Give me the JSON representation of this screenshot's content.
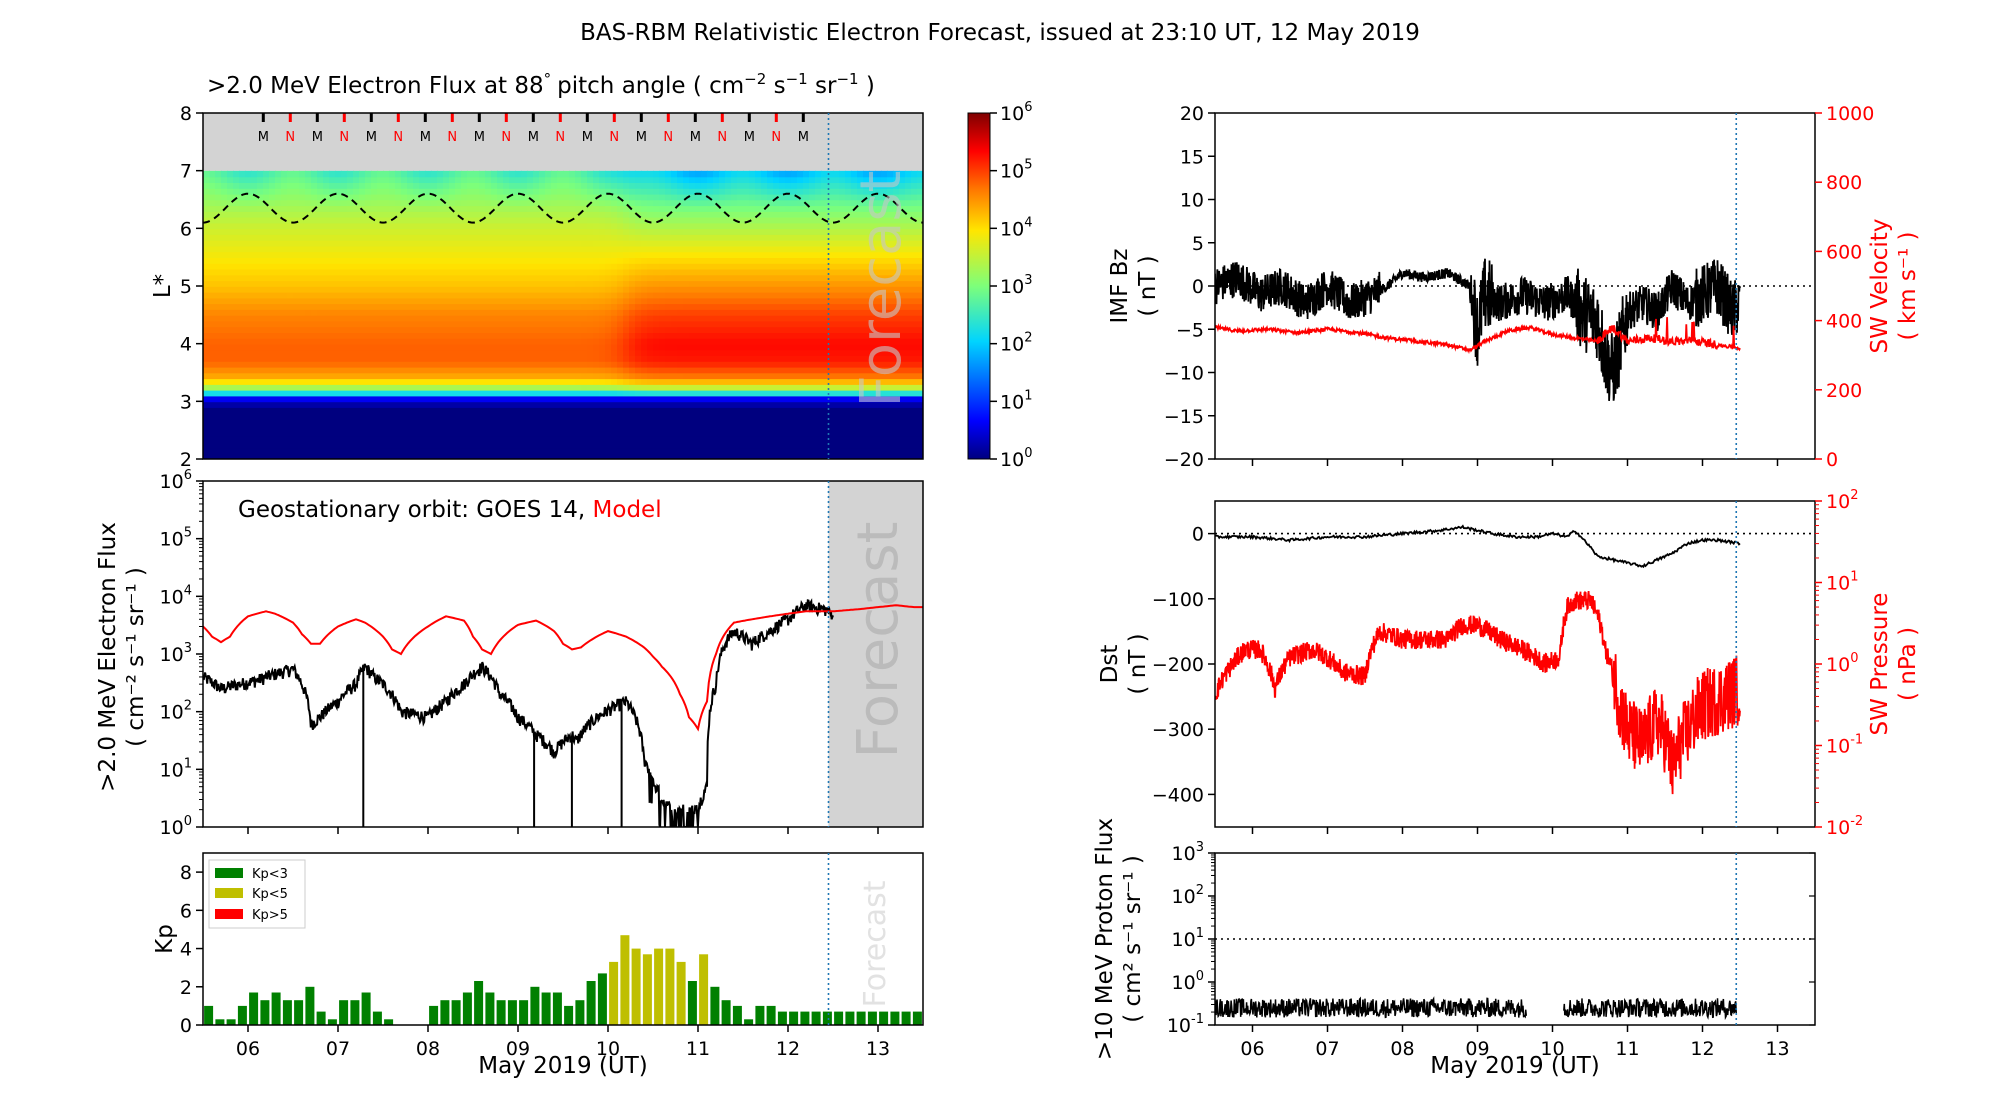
{
  "figure": {
    "title": "BAS-RBM Relativistic Electron Forecast, issued at 23:10 UT, 12 May 2019",
    "xlabel": "May 2019 (UT)",
    "day_ticks": [
      "06",
      "07",
      "08",
      "09",
      "10",
      "11",
      "12",
      "13"
    ],
    "forecast_text": "Forecast",
    "colors": {
      "black": "#000000",
      "red": "#ff0000",
      "forecast_line": "#1f77b4",
      "forecast_shade": "#d3d3d3",
      "kp_low": "#008000",
      "kp_mid": "#bfbf00",
      "kp_high": "#ff0000"
    }
  },
  "chart_data": [
    {
      "id": "lstar-flux",
      "type": "heatmap",
      "title_main": ">2.0 MeV Electron Flux at 88",
      "title_deg": "°",
      "title_units": "pitch angle ( cm",
      "title_sup1": "−2",
      "title_mid1": " s",
      "title_sup2": "−1",
      "title_mid2": " sr",
      "title_sup3": "−1",
      "title_end": " )",
      "ylabel": "L*",
      "xlim": [
        5.5,
        13.5
      ],
      "ylim": [
        2,
        8
      ],
      "yticks": [
        "2",
        "3",
        "4",
        "5",
        "6",
        "7",
        "8"
      ],
      "colorbar": {
        "label_base": "10",
        "exponents": [
          "0",
          "1",
          "2",
          "3",
          "4",
          "5",
          "6"
        ],
        "log10_range": [
          0,
          6
        ]
      },
      "orbit_markers": [
        {
          "label": "M",
          "t": 6.17
        },
        {
          "label": "N",
          "t": 6.47
        },
        {
          "label": "M",
          "t": 6.77
        },
        {
          "label": "N",
          "t": 7.07
        },
        {
          "label": "M",
          "t": 7.37
        },
        {
          "label": "N",
          "t": 7.67
        },
        {
          "label": "M",
          "t": 7.97
        },
        {
          "label": "N",
          "t": 8.27
        },
        {
          "label": "M",
          "t": 8.57
        },
        {
          "label": "N",
          "t": 8.87
        },
        {
          "label": "M",
          "t": 9.17
        },
        {
          "label": "N",
          "t": 9.47
        },
        {
          "label": "M",
          "t": 9.77
        },
        {
          "label": "N",
          "t": 10.07
        },
        {
          "label": "M",
          "t": 10.37
        },
        {
          "label": "N",
          "t": 10.67
        },
        {
          "label": "M",
          "t": 10.97
        },
        {
          "label": "N",
          "t": 11.27
        },
        {
          "label": "M",
          "t": 11.57
        },
        {
          "label": "N",
          "t": 11.87
        },
        {
          "label": "M",
          "t": 12.17
        },
        {
          "label": "N",
          "t": 12.47
        }
      ],
      "flux_profile": {
        "L": [
          2.0,
          2.9,
          3.05,
          3.2,
          3.4,
          3.7,
          4.0,
          4.5,
          5.0,
          5.5,
          6.0,
          6.5,
          7.0
        ],
        "before_storm_log10": [
          0.0,
          0.0,
          0.6,
          3.0,
          4.3,
          4.8,
          4.8,
          4.6,
          4.2,
          3.9,
          3.6,
          3.2,
          2.8
        ],
        "after_storm_log10": [
          0.0,
          0.0,
          0.6,
          3.2,
          4.6,
          5.2,
          5.3,
          5.0,
          4.5,
          4.0,
          3.4,
          2.8,
          2.1
        ]
      },
      "storm_time": 10.2,
      "magnetopause_L": {
        "mean": 6.35,
        "amplitude": 0.25,
        "period_days": 1.0
      },
      "forecast_start": 12.45
    },
    {
      "id": "geo-flux",
      "type": "line",
      "annotation_prefix": "Geostationary orbit:   GOES 14,  ",
      "annotation_model": "Model",
      "ylabel_line1": ">2.0 MeV Electron Flux",
      "ylabel_line2": "( cm⁻² s⁻¹ sr⁻¹ )",
      "yscale": "log",
      "ylim": [
        1,
        1000000
      ],
      "ytick_exponents": [
        "0",
        "1",
        "2",
        "3",
        "4",
        "5",
        "6"
      ],
      "xlim": [
        5.5,
        13.5
      ],
      "series": [
        {
          "name": "GOES 14",
          "x": [
            5.5,
            5.7,
            5.9,
            6.1,
            6.3,
            6.5,
            6.6,
            6.7,
            6.8,
            7.0,
            7.2,
            7.3,
            7.4,
            7.6,
            7.7,
            8.0,
            8.2,
            8.4,
            8.6,
            8.7,
            8.8,
            9.0,
            9.2,
            9.4,
            9.6,
            9.65,
            10.2,
            10.3,
            10.4,
            10.5,
            10.6,
            10.7,
            11.0,
            11.1,
            11.2,
            11.3,
            11.4,
            11.6,
            11.8,
            12.0,
            12.2,
            12.4,
            12.5
          ],
          "y": [
            400,
            250,
            300,
            350,
            450,
            550,
            300,
            60,
            80,
            150,
            300,
            600,
            400,
            200,
            100,
            80,
            150,
            300,
            600,
            400,
            200,
            80,
            40,
            20,
            40,
            30,
            150,
            80,
            15,
            6,
            3,
            2,
            2,
            5,
            300,
            1500,
            2500,
            1500,
            2500,
            4000,
            7000,
            6000,
            5000
          ]
        },
        {
          "name": "Model",
          "x": [
            5.5,
            5.6,
            5.7,
            5.8,
            6.0,
            6.2,
            6.3,
            6.5,
            6.6,
            6.7,
            6.8,
            7.0,
            7.2,
            7.3,
            7.5,
            7.6,
            7.7,
            8.0,
            8.2,
            8.4,
            8.5,
            8.6,
            8.7,
            9.0,
            9.2,
            9.4,
            9.5,
            9.6,
            9.7,
            10.0,
            10.2,
            10.4,
            10.5,
            10.6,
            10.7,
            10.8,
            10.9,
            11.0,
            11.1,
            11.2,
            11.4,
            11.6,
            11.8,
            12.0,
            12.2,
            12.5,
            12.8,
            13.0,
            13.2,
            13.4,
            13.5
          ],
          "y": [
            3000,
            2000,
            1600,
            2000,
            4500,
            5500,
            5000,
            3500,
            2200,
            1500,
            1500,
            3000,
            4000,
            3500,
            2000,
            1200,
            1000,
            3000,
            4500,
            3800,
            2000,
            1200,
            1000,
            3200,
            3800,
            2500,
            1500,
            1200,
            1300,
            2500,
            2000,
            1300,
            900,
            600,
            400,
            200,
            80,
            50,
            150,
            1000,
            3500,
            4000,
            4500,
            5000,
            5500,
            5500,
            6000,
            6500,
            7000,
            6500,
            6500
          ]
        }
      ],
      "forecast_start": 12.45
    },
    {
      "id": "kp",
      "type": "bar",
      "ylabel": "Kp",
      "ylim": [
        0,
        9
      ],
      "yticks": [
        "0",
        "2",
        "4",
        "6",
        "8"
      ],
      "xlim": [
        5.5,
        13.5
      ],
      "bar_width_days": 0.1,
      "legend": [
        "Kp<3",
        "Kp<5",
        "Kp>5"
      ],
      "legend_placement": "top-left",
      "values": [
        1.0,
        0.3,
        0.3,
        1.0,
        1.7,
        1.3,
        1.7,
        1.3,
        1.3,
        2.0,
        0.7,
        0.3,
        1.3,
        1.3,
        1.7,
        0.7,
        0.3,
        0.0,
        0.0,
        0.0,
        1.0,
        1.3,
        1.3,
        1.7,
        2.3,
        1.7,
        1.3,
        1.3,
        1.3,
        2.0,
        1.7,
        1.7,
        1.0,
        1.3,
        2.3,
        2.7,
        3.3,
        4.7,
        4.0,
        3.7,
        4.0,
        4.0,
        3.3,
        2.3,
        3.7,
        2.0,
        1.3,
        1.0,
        0.3,
        1.0,
        1.0,
        0.7,
        0.7,
        0.7,
        0.7,
        0.7,
        0.7,
        0.7,
        0.7,
        0.7,
        0.7,
        0.7,
        0.7,
        0.7
      ],
      "forecast_start": 12.45
    },
    {
      "id": "imf-sw",
      "type": "line",
      "ylabel_left_1": "IMF Bz",
      "ylabel_left_2": "( nT )",
      "ylabel_right_1": "SW Velocity",
      "ylabel_right_2": "( km s⁻¹ )",
      "ylim_left": [
        -20,
        20
      ],
      "yticks_left": [
        "-20",
        "-15",
        "-10",
        "-5",
        "0",
        "5",
        "10",
        "15",
        "20"
      ],
      "ylim_right": [
        0,
        1000
      ],
      "yticks_right": [
        "0",
        "200",
        "400",
        "600",
        "800",
        "1000"
      ],
      "xlim": [
        5.5,
        13.5
      ],
      "series": [
        {
          "name": "IMF Bz",
          "x": [
            5.5,
            5.8,
            6.1,
            6.4,
            6.7,
            7.0,
            7.3,
            7.6,
            7.8,
            8.0,
            8.3,
            8.6,
            8.9,
            9.0,
            9.1,
            9.3,
            9.6,
            9.9,
            10.2,
            10.4,
            10.6,
            10.7,
            10.8,
            10.9,
            11.0,
            11.2,
            11.4,
            11.6,
            11.8,
            12.0,
            12.2,
            12.4,
            12.5
          ],
          "y": [
            0,
            1,
            -1,
            0,
            -2,
            0,
            -2,
            -1,
            0,
            1.5,
            1,
            1.5,
            0,
            -5,
            -1,
            -2,
            -1,
            -2,
            -1,
            -3,
            -4,
            -8,
            -10,
            -7,
            -3,
            -2,
            -3,
            0,
            -2,
            -1,
            0,
            -3,
            -2
          ]
        },
        {
          "name": "SW Velocity",
          "x": [
            5.5,
            5.8,
            6.2,
            6.6,
            7.0,
            7.4,
            7.8,
            8.2,
            8.6,
            8.9,
            9.1,
            9.4,
            9.7,
            10.0,
            10.3,
            10.6,
            10.8,
            11.0,
            11.3,
            11.6,
            11.9,
            12.2,
            12.5
          ],
          "y": [
            380,
            370,
            375,
            365,
            375,
            365,
            350,
            340,
            330,
            315,
            340,
            370,
            380,
            360,
            350,
            340,
            380,
            340,
            350,
            340,
            340,
            330,
            320
          ]
        }
      ],
      "forecast_start": 12.45
    },
    {
      "id": "dst-pressure",
      "type": "line",
      "ylabel_left_1": "Dst",
      "ylabel_left_2": "( nT )",
      "ylabel_right_1": "SW Pressure",
      "ylabel_right_2": "( nPa )",
      "ylim_left": [
        -450,
        50
      ],
      "yticks_left": [
        "0",
        "-100",
        "-200",
        "-300",
        "-400"
      ],
      "yscale_right": "log",
      "ylim_right": [
        0.01,
        100
      ],
      "ytick_exponents_right": [
        "-2",
        "-1",
        "0",
        "1",
        "2"
      ],
      "xlim": [
        5.5,
        13.5
      ],
      "series": [
        {
          "name": "Dst",
          "x": [
            5.5,
            6.0,
            6.5,
            7.0,
            7.5,
            8.0,
            8.5,
            8.8,
            9.0,
            9.2,
            9.5,
            9.8,
            10.0,
            10.2,
            10.3,
            10.5,
            10.6,
            10.8,
            11.0,
            11.2,
            11.4,
            11.6,
            11.8,
            12.0,
            12.2,
            12.5
          ],
          "y": [
            -5,
            -5,
            -10,
            -5,
            -5,
            0,
            5,
            10,
            5,
            0,
            -5,
            -5,
            0,
            -5,
            5,
            -20,
            -35,
            -40,
            -45,
            -50,
            -40,
            -30,
            -15,
            -10,
            -10,
            -15
          ]
        },
        {
          "name": "SW Pressure",
          "x": [
            5.5,
            5.7,
            5.9,
            6.1,
            6.3,
            6.5,
            6.8,
            7.0,
            7.2,
            7.5,
            7.7,
            8.0,
            8.3,
            8.6,
            8.8,
            9.0,
            9.3,
            9.6,
            9.9,
            10.1,
            10.2,
            10.3,
            10.5,
            10.6,
            10.7,
            10.8,
            10.9,
            11.0,
            11.2,
            11.4,
            11.6,
            11.8,
            12.0,
            12.3,
            12.5
          ],
          "y": [
            0.4,
            0.9,
            1.5,
            1.5,
            0.5,
            1.2,
            1.5,
            1.2,
            0.8,
            0.7,
            2.5,
            2.0,
            2.0,
            2.0,
            3.0,
            3.0,
            2.0,
            1.5,
            1.0,
            1.2,
            5.0,
            6.0,
            6.0,
            4.0,
            1.5,
            0.8,
            0.3,
            0.15,
            0.1,
            0.2,
            0.05,
            0.15,
            0.3,
            0.4,
            0.5
          ]
        }
      ],
      "forecast_start": 12.45
    },
    {
      "id": "proton-flux",
      "type": "line",
      "ylabel_line1": ">10 MeV Proton Flux",
      "ylabel_line2": "( cm² s⁻¹ sr⁻¹ )",
      "yscale": "log",
      "ylim": [
        0.1,
        1000
      ],
      "ytick_exponents": [
        "-1",
        "0",
        "1",
        "2",
        "3"
      ],
      "threshold": 10,
      "xlim": [
        5.5,
        13.5
      ],
      "series": [
        {
          "name": ">10 MeV Proton Flux",
          "segments": [
            [
              5.5,
              9.65
            ],
            [
              10.15,
              12.45
            ]
          ],
          "typical_value": 0.25
        }
      ],
      "forecast_start": 12.45
    }
  ]
}
